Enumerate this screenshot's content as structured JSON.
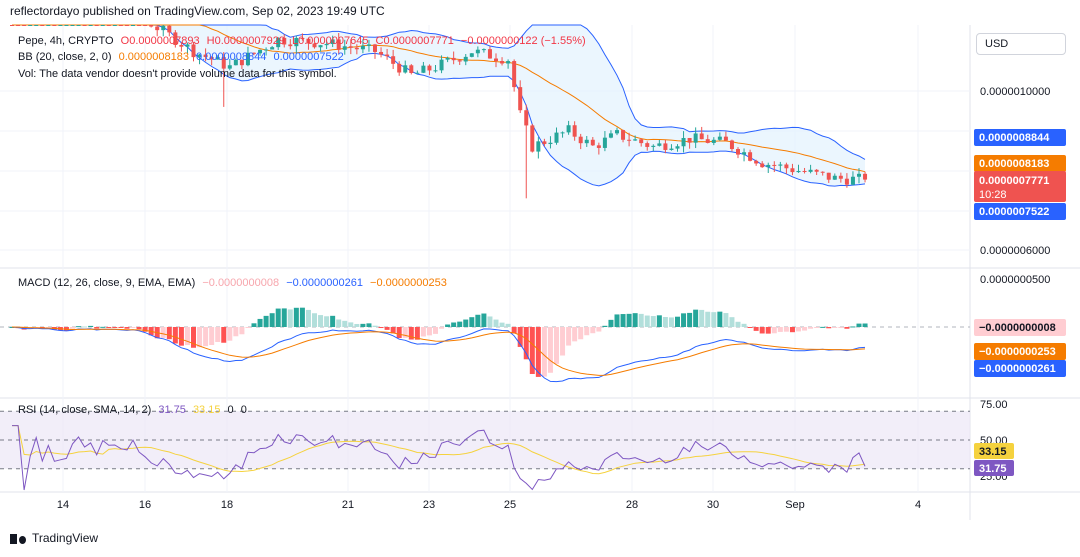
{
  "header": {
    "caption": "reflectordayo published on TradingView.com, Sep 02, 2023 19:49 UTC"
  },
  "legend": {
    "symbol": "Pepe, 4h, CRYPTO",
    "open": "O0.0000007893",
    "high": "H0.0000007929",
    "low": "L0.0000007645",
    "close": "C0.0000007771",
    "change": "−0.0000000122 (−1.55%)",
    "bb_label": "BB (20, close, 2, 0)",
    "bb_basis": "0.0000008183",
    "bb_upper": "0.0000008844",
    "bb_lower": "0.0000007522",
    "vol_label": "Vol: The data vendor doesn't provide volume data for this symbol.",
    "macd_label": "MACD (12, 26, close, 9, EMA, EMA)",
    "macd_hist": "−0.0000000008",
    "macd_line": "−0.0000000261",
    "macd_signal": "−0.0000000253",
    "rsi_label": "RSI (14, close, SMA, 14, 2)",
    "rsi_value": "31.75",
    "rsi_ma": "33.15",
    "rsi_extra1": "0",
    "rsi_extra2": "0"
  },
  "currency_button": "USD",
  "price_axis": {
    "ticks": [
      {
        "label": "0.0000010000",
        "value": 1e-06
      },
      {
        "label": "0.0000006000",
        "value": 6e-07
      }
    ],
    "tags": {
      "upper": "0.0000008844",
      "basis": "0.0000008183",
      "last": "0.0000007771",
      "countdown": "10:28",
      "lower": "0.0000007522"
    }
  },
  "macd_axis": {
    "ticks": [
      {
        "label": "0.0000000500",
        "value": 5e-08
      }
    ],
    "tags": {
      "hist": "−0.0000000008",
      "signal": "−0.0000000253",
      "macd": "−0.0000000261"
    }
  },
  "rsi_axis": {
    "ticks": [
      {
        "label": "75.00",
        "value": 75
      },
      {
        "label": "50.00",
        "value": 50
      },
      {
        "label": "25.00",
        "value": 25
      }
    ],
    "tags": {
      "ma": "33.15",
      "rsi": "31.75"
    }
  },
  "time_axis": [
    "14",
    "16",
    "18",
    "21",
    "23",
    "25",
    "28",
    "30",
    "Sep",
    "4"
  ],
  "footer": {
    "brand": "TradingView"
  },
  "colors": {
    "up": "#26a69a",
    "down": "#ef5350",
    "bb_basis": "#f57c00",
    "bb_bands": "#2962ff",
    "bb_fill": "#e3f2fd",
    "macd_line": "#2962ff",
    "signal_line": "#f57c00",
    "rsi_line": "#7e57c2",
    "rsi_ma": "#f5d23e",
    "rsi_band": "#ede7f6"
  },
  "chart_data": {
    "type": "candlestick",
    "symbol": "Pepe",
    "timeframe": "4h",
    "x_range": [
      "Aug 12, 2023",
      "Sep 05, 2023"
    ],
    "y_range": [
      5.5e-07,
      1.3e-06
    ],
    "candles_approx": [
      {
        "date": "Aug 17",
        "open": 1.18e-06,
        "high": 1.22e-06,
        "low": 9.5e-07,
        "close": 1.05e-06
      },
      {
        "date": "Aug 18",
        "open": 1.04e-06,
        "high": 1.12e-06,
        "low": 9.8e-07,
        "close": 1.08e-06
      },
      {
        "date": "Aug 20",
        "open": 1.12e-06,
        "high": 1.17e-06,
        "low": 1.08e-06,
        "close": 1.14e-06
      },
      {
        "date": "Aug 22",
        "open": 1.08e-06,
        "high": 1.1e-06,
        "low": 1e-06,
        "close": 1.03e-06
      },
      {
        "date": "Aug 24",
        "open": 1.09e-06,
        "high": 1.13e-06,
        "low": 1.03e-06,
        "close": 1.06e-06
      },
      {
        "date": "Aug 25",
        "open": 9.4e-07,
        "high": 9.5e-07,
        "low": 7.3e-07,
        "close": 8.5e-07
      },
      {
        "date": "Aug 26",
        "open": 8.5e-07,
        "high": 9.3e-07,
        "low": 8.3e-07,
        "close": 8.9e-07
      },
      {
        "date": "Aug 28",
        "open": 8.8e-07,
        "high": 9e-07,
        "low": 8.4e-07,
        "close": 8.6e-07
      },
      {
        "date": "Aug 29",
        "open": 8.4e-07,
        "high": 9.1e-07,
        "low": 8.2e-07,
        "close": 8.9e-07
      },
      {
        "date": "Aug 31",
        "open": 8.6e-07,
        "high": 8.7e-07,
        "low": 8.1e-07,
        "close": 8.2e-07
      },
      {
        "date": "Sep 01",
        "open": 8.1e-07,
        "high": 8.2e-07,
        "low": 7.6e-07,
        "close": 7.8e-07
      },
      {
        "date": "Sep 02",
        "open": 7.893e-07,
        "high": 7.929e-07,
        "low": 7.645e-07,
        "close": 7.771e-07
      }
    ],
    "bollinger": {
      "period": 20,
      "basis": 8.183e-07,
      "upper": 8.844e-07,
      "lower": 7.522e-07
    },
    "macd": {
      "macd": -2.61e-08,
      "signal": -2.53e-08,
      "histogram": -8e-10
    },
    "rsi": {
      "value": 31.75,
      "ma": 33.15,
      "levels": [
        70,
        50,
        30
      ]
    }
  }
}
